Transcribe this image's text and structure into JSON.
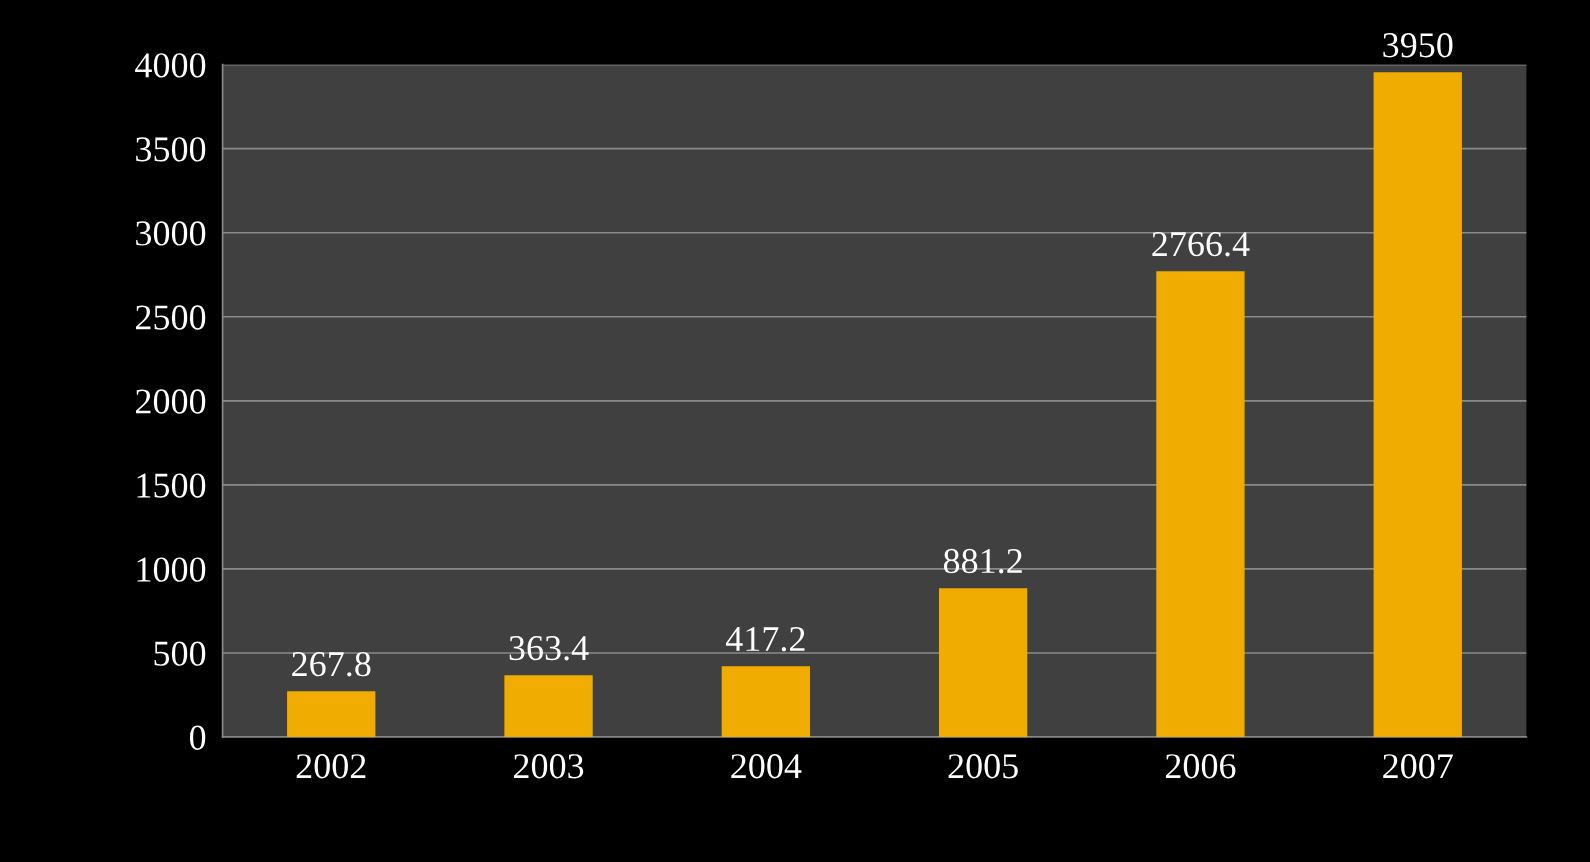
{
  "chart_data": {
    "type": "bar",
    "categories": [
      "2002",
      "2003",
      "2004",
      "2005",
      "2006",
      "2007"
    ],
    "values": [
      267.8,
      363.4,
      417.2,
      881.2,
      2766.4,
      3950
    ],
    "color": "#f0ac00",
    "ylim": [
      0,
      4000
    ],
    "yticks": [
      0,
      500,
      1000,
      1500,
      2000,
      2500,
      3000,
      3500,
      4000
    ],
    "grid": "y",
    "data_labels": true
  }
}
